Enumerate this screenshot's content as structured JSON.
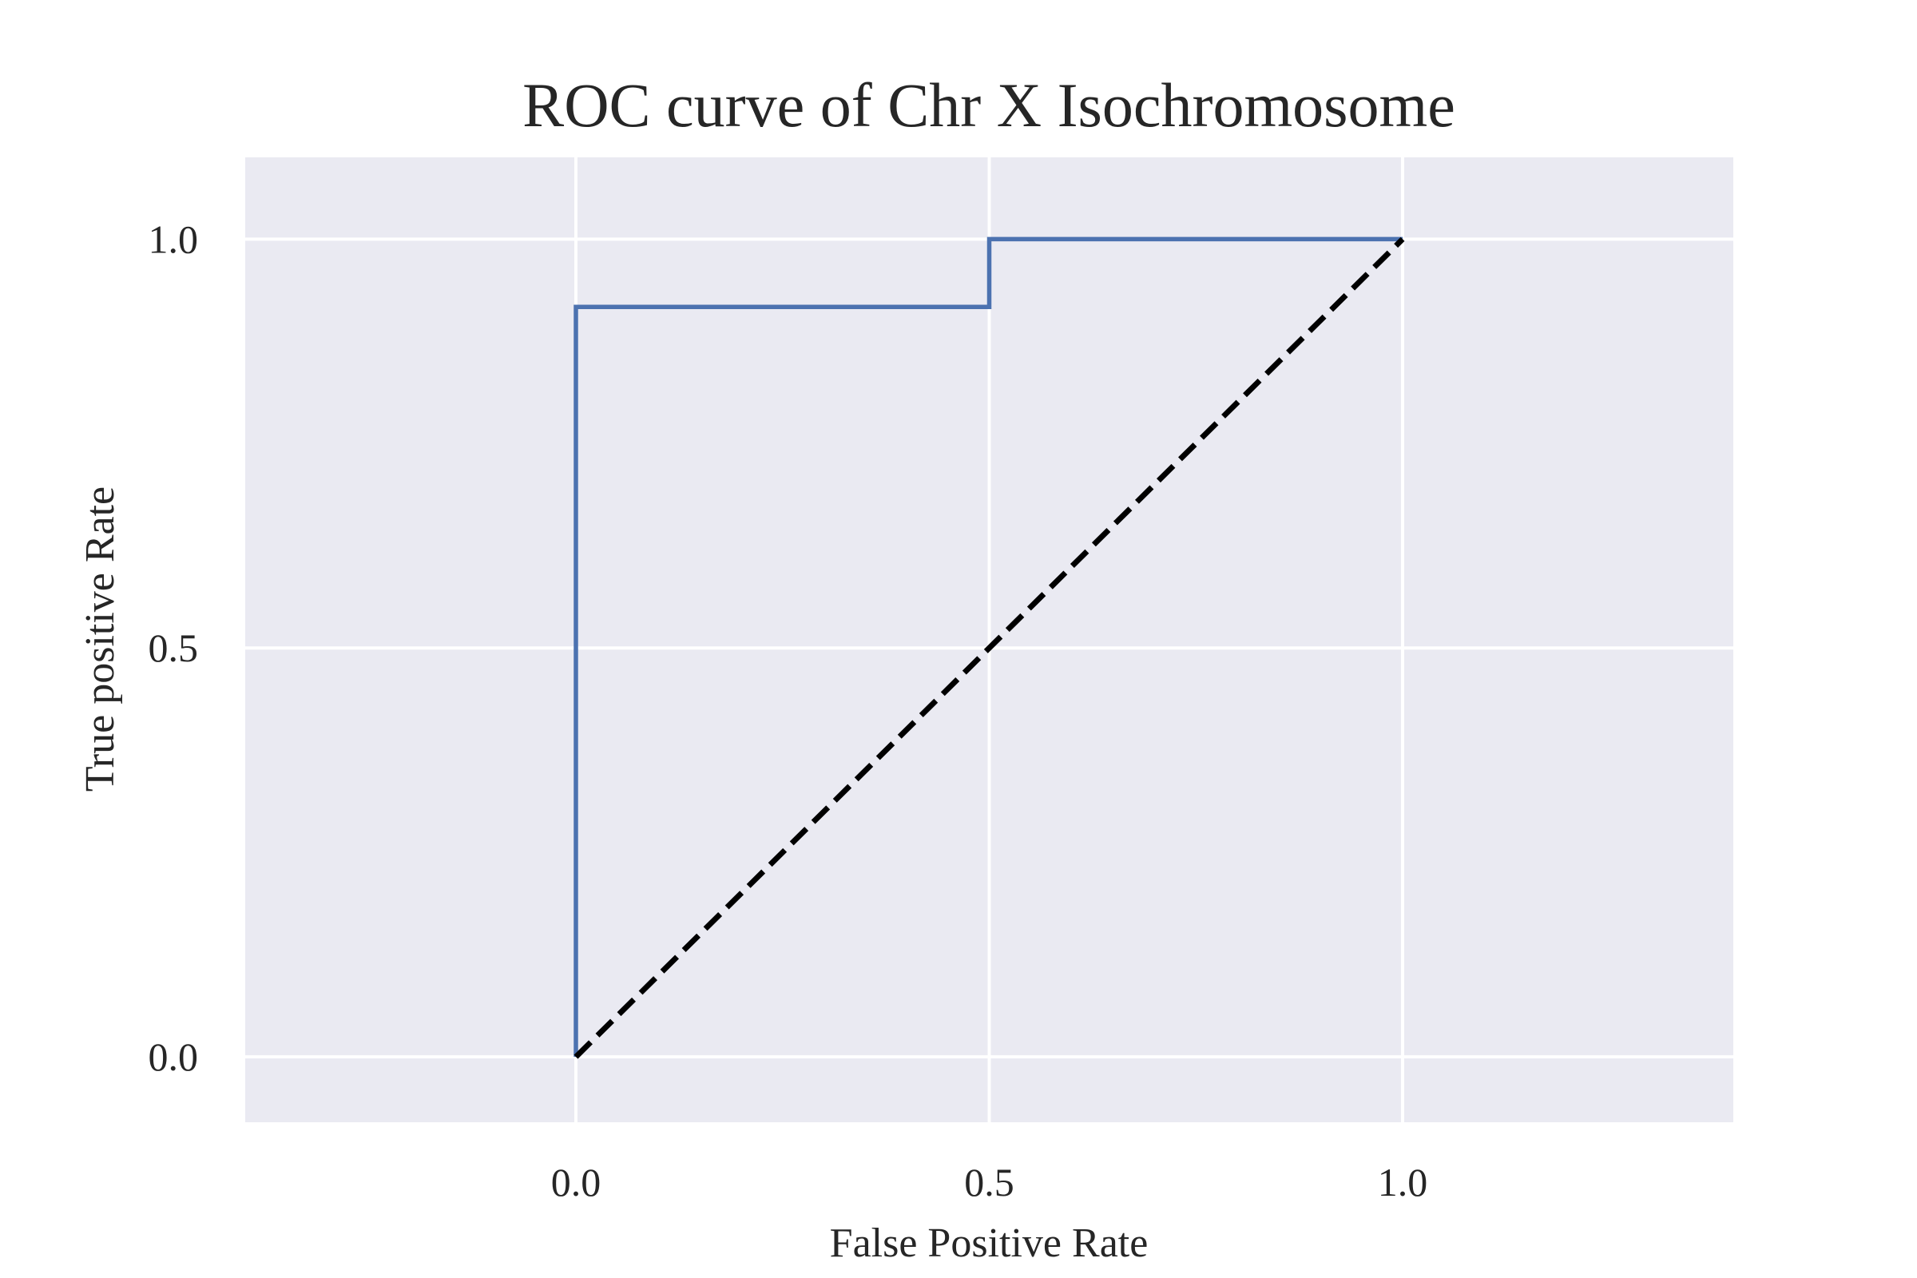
{
  "chart_data": {
    "type": "line",
    "title": "ROC curve of Chr X Isochromosome",
    "xlabel": "False Positive Rate",
    "ylabel": "True positive Rate",
    "xlim": [
      -0.4,
      1.4
    ],
    "ylim": [
      -0.08,
      1.1
    ],
    "xticks": [
      0.0,
      0.5,
      1.0
    ],
    "xtick_labels": [
      "0.0",
      "0.5",
      "1.0"
    ],
    "yticks": [
      0.0,
      0.5,
      1.0
    ],
    "ytick_labels": [
      "0.0",
      "0.5",
      "1.0"
    ],
    "grid": true,
    "legend": "none",
    "series": [
      {
        "style": "solid",
        "color": "#4c72b0",
        "x": [
          0.0,
          0.0,
          0.5,
          0.5,
          1.0
        ],
        "y": [
          0.0,
          0.917,
          0.917,
          1.0,
          1.0
        ]
      },
      {
        "style": "dashed",
        "color": "#000000",
        "x": [
          0.0,
          1.0
        ],
        "y": [
          0.0,
          1.0
        ]
      }
    ],
    "colors": {
      "plot_background": "#eaeaf2",
      "grid": "#ffffff",
      "text": "#262626"
    }
  }
}
